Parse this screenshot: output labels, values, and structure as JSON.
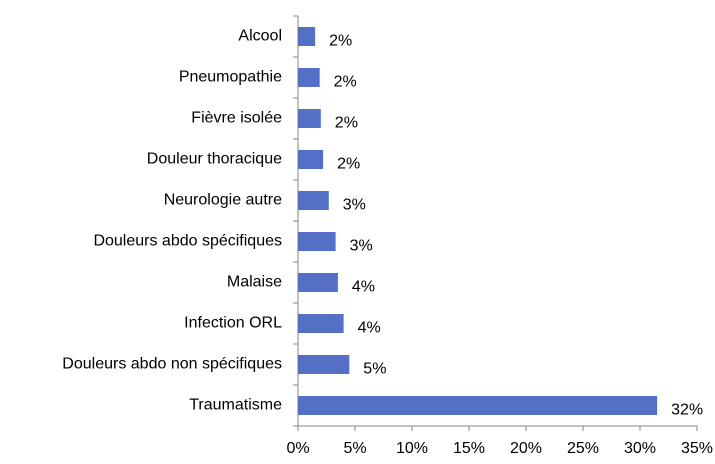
{
  "chart_data": {
    "type": "bar",
    "orientation": "horizontal",
    "categories": [
      "Alcool",
      "Pneumopathie",
      "Fièvre isolée",
      "Douleur thoracique",
      "Neurologie autre",
      "Douleurs abdo spécifiques",
      "Malaise",
      "Infection ORL",
      "Douleurs abdo non spécifiques",
      "Traumatisme"
    ],
    "values": [
      1.5,
      1.9,
      2.0,
      2.2,
      2.7,
      3.3,
      3.5,
      4.0,
      4.5,
      31.5
    ],
    "value_labels": [
      "2%",
      "2%",
      "2%",
      "2%",
      "3%",
      "3%",
      "4%",
      "4%",
      "5%",
      "32%"
    ],
    "color": "#5470c6",
    "xlim": [
      0,
      35
    ],
    "xticks": [
      {
        "value": 0,
        "label": "0%"
      },
      {
        "value": 5,
        "label": "5%"
      },
      {
        "value": 10,
        "label": "10%"
      },
      {
        "value": 15,
        "label": "15%"
      },
      {
        "value": 20,
        "label": "20%"
      },
      {
        "value": 25,
        "label": "25%"
      },
      {
        "value": 30,
        "label": "30%"
      },
      {
        "value": 35,
        "label": "35%"
      }
    ],
    "grid": false
  }
}
